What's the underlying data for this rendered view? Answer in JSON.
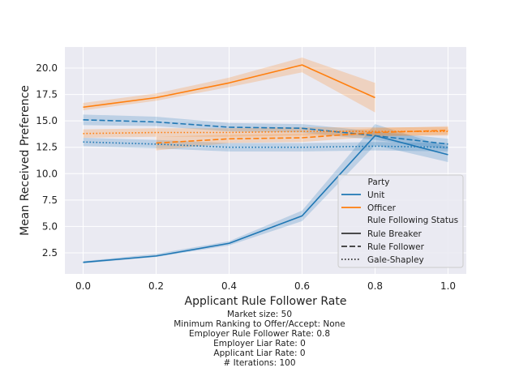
{
  "chart_data": {
    "type": "line",
    "xlabel": "Applicant Rule Follower Rate",
    "ylabel": "Mean Received Preference",
    "xlim": [
      -0.05,
      1.05
    ],
    "ylim": [
      0.5,
      22.0
    ],
    "xticks": [
      "0.0",
      "0.2",
      "0.4",
      "0.6",
      "0.8",
      "1.0"
    ],
    "yticks": [
      "2.5",
      "5.0",
      "7.5",
      "10.0",
      "12.5",
      "15.0",
      "17.5",
      "20.0"
    ],
    "grid": true,
    "legend_position": "lower-right",
    "legend": {
      "hue_title": "Party",
      "hue_entries": [
        {
          "label": "Unit",
          "color": "#1f77b4"
        },
        {
          "label": "Officer",
          "color": "#ff7f0e"
        }
      ],
      "style_title": "Rule Following Status",
      "style_entries": [
        {
          "label": "Rule Breaker",
          "dash": "solid"
        },
        {
          "label": "Rule Follower",
          "dash": "dashed"
        },
        {
          "label": "Gale-Shapley",
          "dash": "dotted"
        }
      ]
    },
    "series": [
      {
        "party": "Unit",
        "status": "Rule Breaker",
        "color": "#1f77b4",
        "dash": "solid",
        "x": [
          0.0,
          0.2,
          0.4,
          0.6,
          0.8,
          1.0
        ],
        "values": [
          1.6,
          2.2,
          3.4,
          6.0,
          13.6,
          11.8
        ],
        "ci": [
          [
            1.5,
            1.7
          ],
          [
            2.1,
            2.4
          ],
          [
            3.2,
            3.6
          ],
          [
            5.5,
            6.5
          ],
          [
            12.7,
            14.7
          ],
          [
            11.1,
            12.5
          ]
        ]
      },
      {
        "party": "Unit",
        "status": "Rule Follower",
        "color": "#1f77b4",
        "dash": "dashed",
        "x": [
          0.0,
          0.2,
          0.4,
          0.6,
          0.8,
          1.0
        ],
        "values": [
          15.1,
          14.9,
          14.4,
          14.3,
          13.6,
          12.8
        ],
        "ci": [
          [
            14.6,
            15.6
          ],
          [
            14.5,
            15.4
          ],
          [
            14.0,
            14.8
          ],
          [
            13.9,
            14.7
          ],
          [
            13.2,
            14.0
          ],
          [
            12.3,
            13.3
          ]
        ]
      },
      {
        "party": "Unit",
        "status": "Gale-Shapley",
        "color": "#1f77b4",
        "dash": "dotted",
        "x": [
          0.0,
          0.2,
          0.4,
          0.6,
          0.8,
          1.0
        ],
        "values": [
          13.0,
          12.8,
          12.5,
          12.5,
          12.6,
          12.5
        ],
        "ci": [
          [
            12.6,
            13.4
          ],
          [
            12.4,
            13.2
          ],
          [
            12.1,
            12.9
          ],
          [
            12.1,
            12.9
          ],
          [
            12.2,
            13.0
          ],
          [
            12.1,
            12.9
          ]
        ]
      },
      {
        "party": "Officer",
        "status": "Rule Breaker",
        "color": "#ff7f0e",
        "dash": "solid",
        "x": [
          0.0,
          0.2,
          0.4,
          0.6,
          0.8
        ],
        "values": [
          16.3,
          17.2,
          18.6,
          20.3,
          17.2
        ],
        "ci": [
          [
            16.0,
            16.7
          ],
          [
            16.9,
            17.6
          ],
          [
            18.2,
            19.1
          ],
          [
            19.6,
            21.0
          ],
          [
            15.8,
            18.6
          ]
        ]
      },
      {
        "party": "Officer",
        "status": "Rule Follower",
        "color": "#ff7f0e",
        "dash": "dashed",
        "x": [
          0.2,
          0.4,
          0.6,
          0.8,
          1.0
        ],
        "values": [
          12.9,
          13.3,
          13.4,
          13.9,
          14.1
        ],
        "ci": [
          [
            12.2,
            13.5
          ],
          [
            12.9,
            13.7
          ],
          [
            13.0,
            13.8
          ],
          [
            13.5,
            14.3
          ],
          [
            13.7,
            14.5
          ]
        ]
      },
      {
        "party": "Officer",
        "status": "Gale-Shapley",
        "color": "#ff7f0e",
        "dash": "dotted",
        "x": [
          0.0,
          0.2,
          0.4,
          0.6,
          0.8,
          1.0
        ],
        "values": [
          13.8,
          13.9,
          13.9,
          14.0,
          14.0,
          14.0
        ],
        "ci": [
          [
            13.4,
            14.2
          ],
          [
            13.5,
            14.3
          ],
          [
            13.5,
            14.3
          ],
          [
            13.6,
            14.4
          ],
          [
            13.6,
            14.4
          ],
          [
            13.6,
            14.4
          ]
        ]
      }
    ],
    "caption": [
      "Market size: 50",
      "Minimum Ranking to Offer/Accept: None",
      "Employer Rule Follower Rate: 0.8",
      "Employer Liar Rate: 0",
      "Applicant Liar Rate: 0",
      "# Iterations: 100"
    ]
  }
}
